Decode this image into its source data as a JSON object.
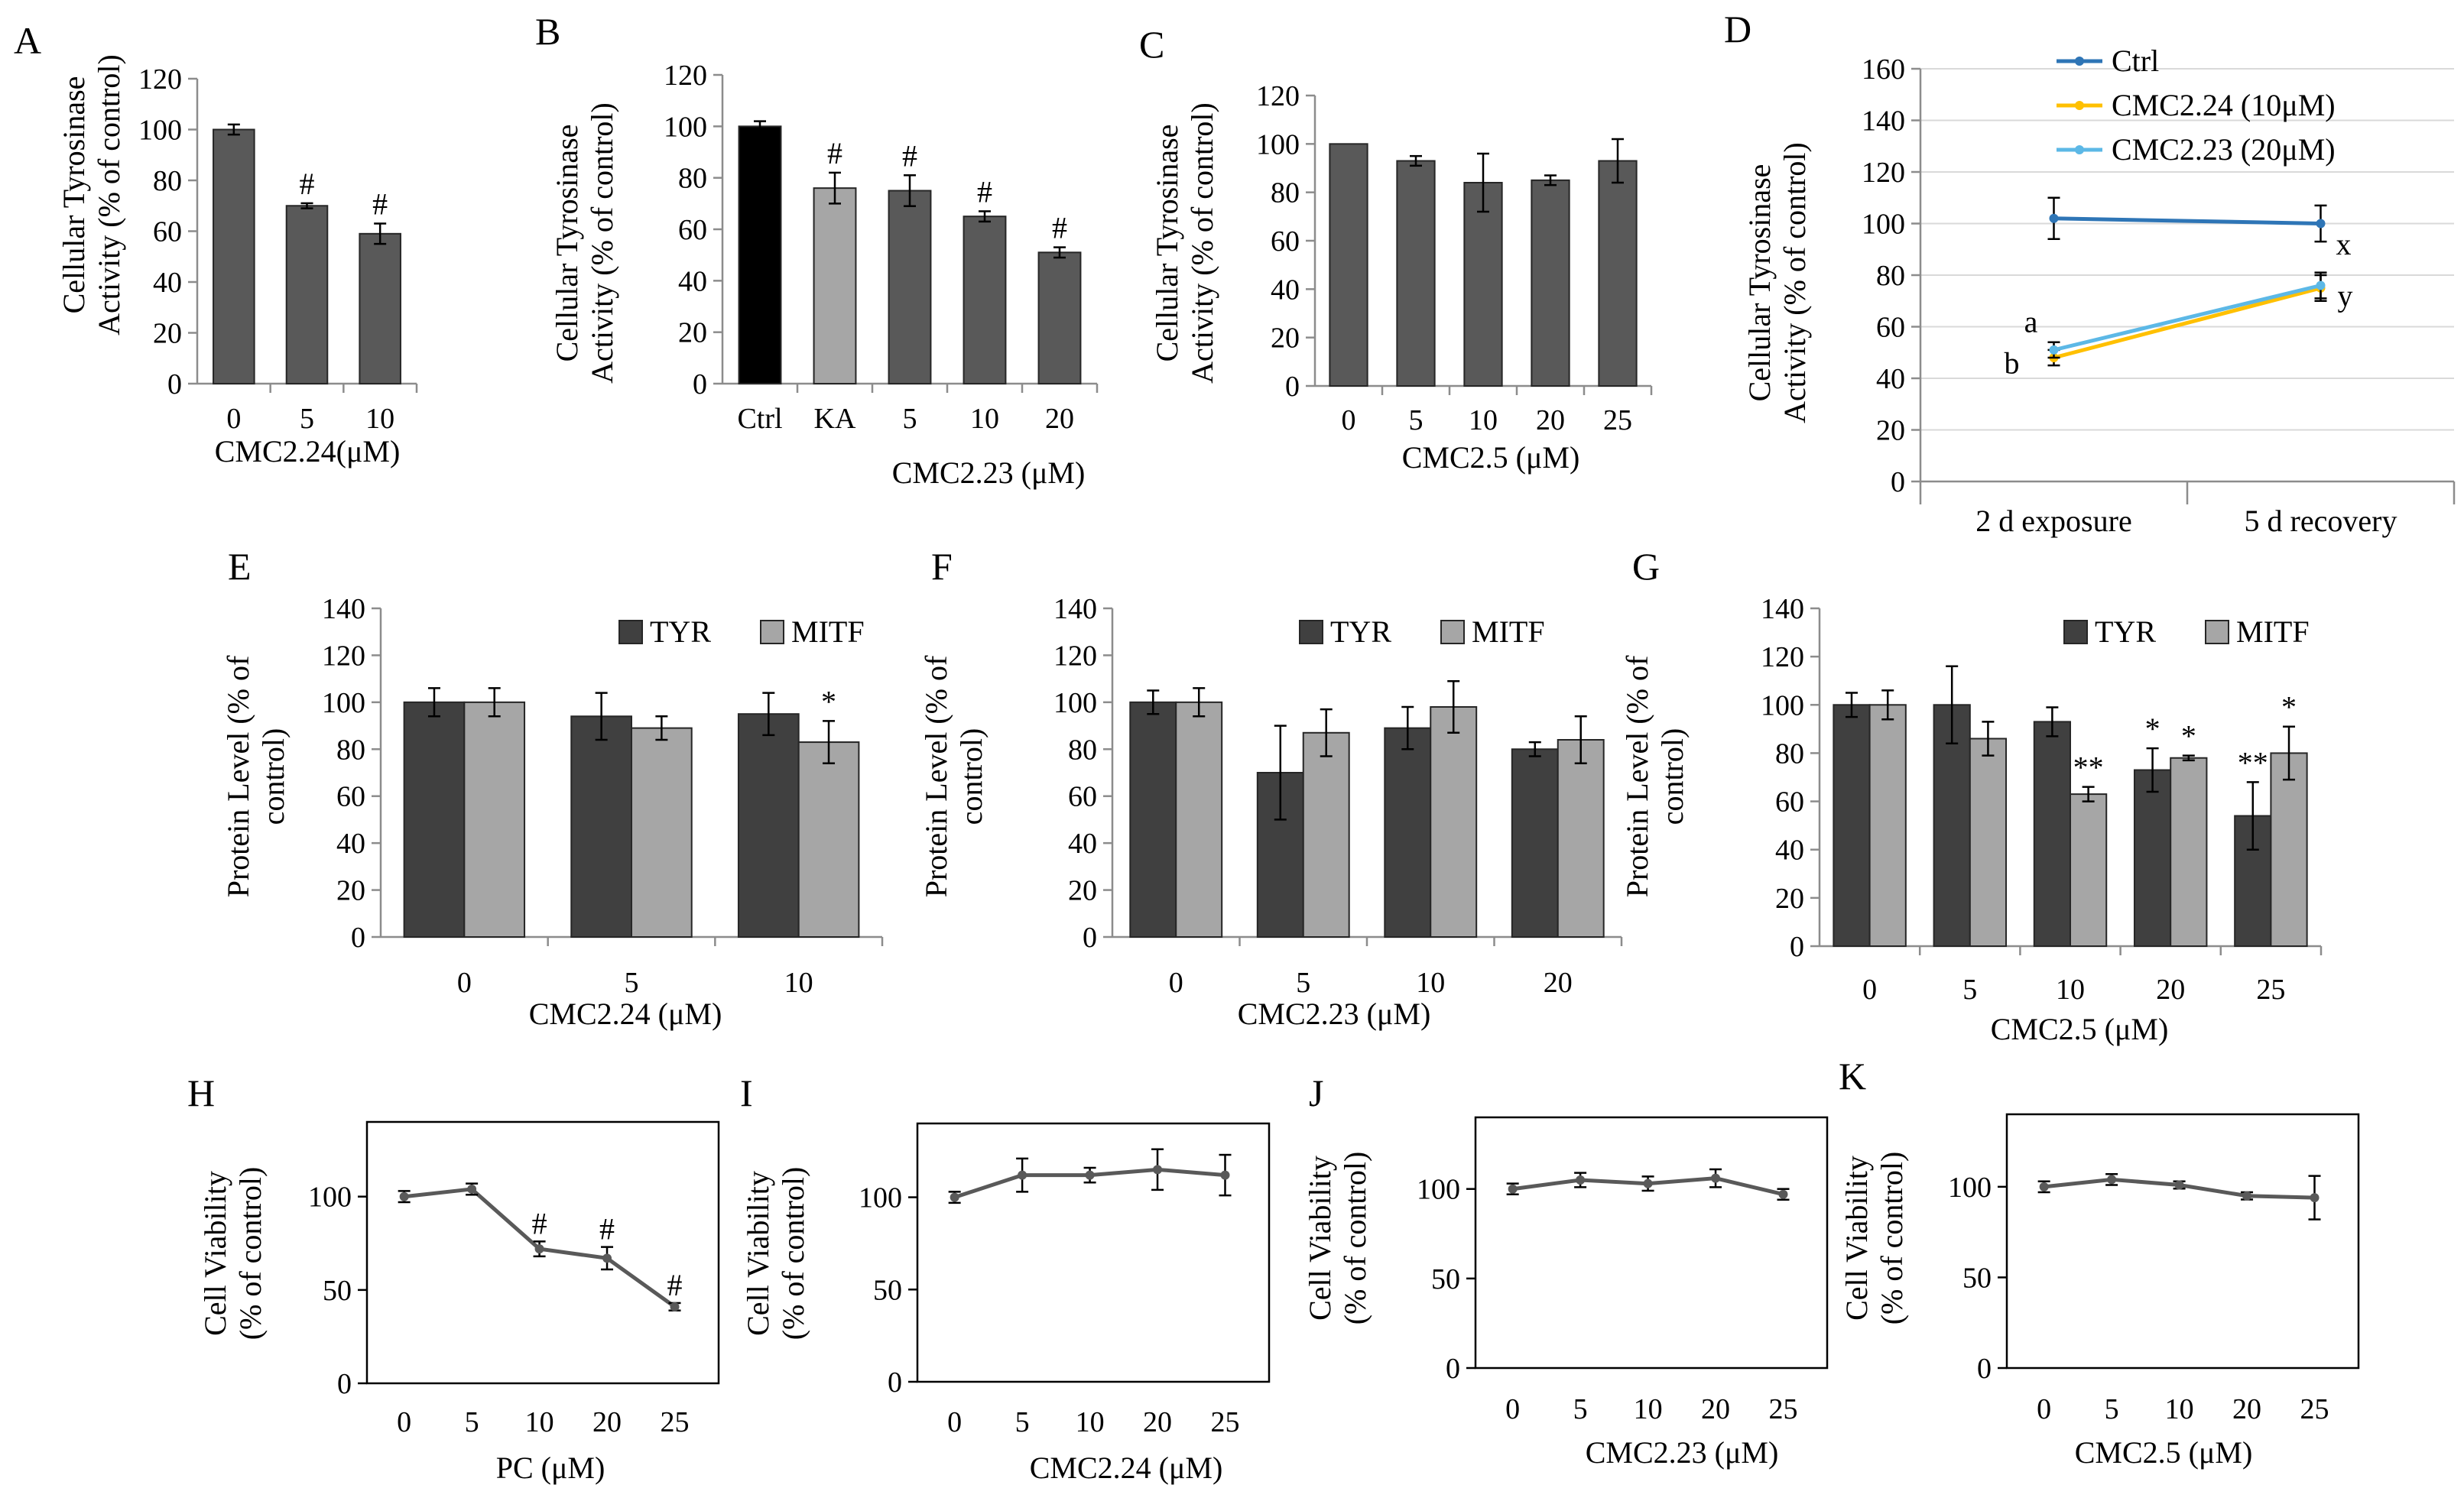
{
  "chart_data": [
    {
      "panel": "A",
      "type": "bar",
      "ylabel": [
        "Cellular Tyrosinase",
        "Activity (% of control)"
      ],
      "xlabel": "CMC2.24(μM)",
      "ylim": [
        0,
        120
      ],
      "yticks": [
        "0",
        "20",
        "40",
        "60",
        "80",
        "100",
        "120"
      ],
      "categories": [
        "0",
        "5",
        "10"
      ],
      "series": [
        {
          "name": "activity",
          "values": [
            100,
            70,
            59
          ],
          "errors": [
            2,
            1,
            4
          ],
          "color": "#595959"
        }
      ],
      "annotations": [
        "",
        "#",
        "#"
      ]
    },
    {
      "panel": "B",
      "type": "bar",
      "ylabel": [
        "Cellular Tyrosinase",
        "Activity (% of control)"
      ],
      "xlabel": "CMC2.23 (μM)",
      "ylim": [
        0,
        120
      ],
      "yticks": [
        "0",
        "20",
        "40",
        "60",
        "80",
        "100",
        "120"
      ],
      "categories": [
        "Ctrl",
        "KA",
        "5",
        "10",
        "20"
      ],
      "series": [
        {
          "name": "activity",
          "values": [
            100,
            76,
            75,
            65,
            51
          ],
          "errors": [
            2,
            6,
            6,
            2,
            2
          ],
          "colors": [
            "#000000",
            "#a6a6a6",
            "#595959",
            "#595959",
            "#595959"
          ]
        }
      ],
      "annotations": [
        "",
        "#",
        "#",
        "#",
        "#"
      ]
    },
    {
      "panel": "C",
      "type": "bar",
      "ylabel": [
        "Cellular Tyrosinase",
        "Activity (% of control)"
      ],
      "xlabel": "CMC2.5 (μM)",
      "ylim": [
        0,
        120
      ],
      "yticks": [
        "0",
        "20",
        "40",
        "60",
        "80",
        "100",
        "120"
      ],
      "categories": [
        "0",
        "5",
        "10",
        "20",
        "25"
      ],
      "series": [
        {
          "name": "activity",
          "values": [
            100,
            93,
            84,
            85,
            93
          ],
          "errors": [
            0,
            2,
            12,
            2,
            9
          ],
          "color": "#595959"
        }
      ],
      "annotations": [
        "",
        "",
        "",
        "",
        ""
      ]
    },
    {
      "panel": "D",
      "type": "line",
      "ylabel": [
        "Cellular Tyrosinase",
        "Activity (% of control)"
      ],
      "xlabel": "",
      "ylim": [
        0,
        160
      ],
      "yticks": [
        "0",
        "20",
        "40",
        "60",
        "80",
        "100",
        "120",
        "140",
        "160"
      ],
      "categories": [
        "2 d exposure",
        "5 d recovery"
      ],
      "grid": true,
      "legend_position": "top-center",
      "series": [
        {
          "name": "Ctrl",
          "values": [
            102,
            100
          ],
          "errors": [
            8,
            7
          ],
          "color": "#2e75b6"
        },
        {
          "name": "CMC2.24 (10μM)",
          "values": [
            48,
            75
          ],
          "errors": [
            3,
            5
          ],
          "color": "#ffc000"
        },
        {
          "name": "CMC2.23 (20μM)",
          "values": [
            51,
            76
          ],
          "errors": [
            3,
            5
          ],
          "color": "#5cb8e6"
        }
      ],
      "point_labels": [
        "a",
        "b",
        "x",
        "y"
      ]
    },
    {
      "panel": "E",
      "type": "bar",
      "ylabel": [
        "Protein Level (% of",
        "control)"
      ],
      "xlabel": "CMC2.24 (μM)",
      "ylim": [
        0,
        140
      ],
      "yticks": [
        "0",
        "20",
        "40",
        "60",
        "80",
        "100",
        "120",
        "140"
      ],
      "categories": [
        "0",
        "5",
        "10"
      ],
      "legend_position": "top-right",
      "series": [
        {
          "name": "TYR",
          "values": [
            100,
            94,
            95
          ],
          "errors": [
            6,
            10,
            9
          ],
          "color": "#404040"
        },
        {
          "name": "MITF",
          "values": [
            100,
            89,
            83
          ],
          "errors": [
            6,
            5,
            9
          ],
          "color": "#a6a6a6"
        }
      ],
      "annotations": [
        [
          "",
          ""
        ],
        [
          "",
          ""
        ],
        [
          "",
          "*"
        ]
      ]
    },
    {
      "panel": "F",
      "type": "bar",
      "ylabel": [
        "Protein Level (% of",
        "control)"
      ],
      "xlabel": "CMC2.23 (μM)",
      "ylim": [
        0,
        140
      ],
      "yticks": [
        "0",
        "20",
        "40",
        "60",
        "80",
        "100",
        "120",
        "140"
      ],
      "categories": [
        "0",
        "5",
        "10",
        "20"
      ],
      "legend_position": "top-right",
      "series": [
        {
          "name": "TYR",
          "values": [
            100,
            70,
            89,
            80
          ],
          "errors": [
            5,
            20,
            9,
            3
          ],
          "color": "#404040"
        },
        {
          "name": "MITF",
          "values": [
            100,
            87,
            98,
            84
          ],
          "errors": [
            6,
            10,
            11,
            10
          ],
          "color": "#a6a6a6"
        }
      ],
      "annotations": [
        [
          "",
          ""
        ],
        [
          "",
          ""
        ],
        [
          "",
          ""
        ],
        [
          "",
          ""
        ]
      ]
    },
    {
      "panel": "G",
      "type": "bar",
      "ylabel": [
        "Protein Level (% of",
        "control)"
      ],
      "xlabel": "CMC2.5 (μM)",
      "ylim": [
        0,
        140
      ],
      "yticks": [
        "0",
        "20",
        "40",
        "60",
        "80",
        "100",
        "120",
        "140"
      ],
      "categories": [
        "0",
        "5",
        "10",
        "20",
        "25"
      ],
      "legend_position": "top-right",
      "series": [
        {
          "name": "TYR",
          "values": [
            100,
            100,
            93,
            73,
            54
          ],
          "errors": [
            5,
            16,
            6,
            9,
            14
          ],
          "color": "#404040"
        },
        {
          "name": "MITF",
          "values": [
            100,
            86,
            63,
            78,
            80
          ],
          "errors": [
            6,
            7,
            3,
            1,
            11
          ],
          "color": "#a6a6a6"
        }
      ],
      "annotations": [
        [
          "",
          ""
        ],
        [
          "",
          ""
        ],
        [
          "",
          "**"
        ],
        [
          "*",
          "*"
        ],
        [
          "**",
          "*"
        ]
      ]
    },
    {
      "panel": "H",
      "type": "line",
      "ylabel": [
        "Cell Viability",
        "(% of control)"
      ],
      "xlabel": "PC (μM)",
      "ylim": [
        0,
        140
      ],
      "yticks": [
        "0",
        "50",
        "100"
      ],
      "categories": [
        "0",
        "5",
        "10",
        "20",
        "25"
      ],
      "series": [
        {
          "name": "viability",
          "values": [
            100,
            104,
            72,
            67,
            41
          ],
          "errors": [
            3,
            3,
            4,
            6,
            2
          ],
          "color": "#595959"
        }
      ],
      "annotations": [
        "",
        "",
        "#",
        "#",
        "#"
      ]
    },
    {
      "panel": "I",
      "type": "line",
      "ylabel": [
        "Cell Viability",
        "(% of control)"
      ],
      "xlabel": "CMC2.24 (μM)",
      "ylim": [
        0,
        140
      ],
      "yticks": [
        "0",
        "50",
        "100"
      ],
      "categories": [
        "0",
        "5",
        "10",
        "20",
        "25"
      ],
      "series": [
        {
          "name": "viability",
          "values": [
            100,
            112,
            112,
            115,
            112
          ],
          "errors": [
            3,
            9,
            4,
            11,
            11
          ],
          "color": "#595959"
        }
      ],
      "annotations": [
        "",
        "",
        "",
        "",
        ""
      ]
    },
    {
      "panel": "J",
      "type": "line",
      "ylabel": [
        "Cell Viability",
        "(% of control)"
      ],
      "xlabel": "CMC2.23 (μM)",
      "ylim": [
        0,
        140
      ],
      "yticks": [
        "0",
        "50",
        "100"
      ],
      "categories": [
        "0",
        "5",
        "10",
        "20",
        "25"
      ],
      "series": [
        {
          "name": "viability",
          "values": [
            100,
            105,
            103,
            106,
            97
          ],
          "errors": [
            3,
            4,
            4,
            5,
            3
          ],
          "color": "#595959"
        }
      ],
      "annotations": [
        "",
        "",
        "",
        "",
        ""
      ]
    },
    {
      "panel": "K",
      "type": "line",
      "ylabel": [
        "Cell Viability",
        "(% of control)"
      ],
      "xlabel": "CMC2.5 (μM)",
      "ylim": [
        0,
        140
      ],
      "yticks": [
        "0",
        "50",
        "100"
      ],
      "categories": [
        "0",
        "5",
        "10",
        "20",
        "25"
      ],
      "series": [
        {
          "name": "viability",
          "values": [
            100,
            104,
            101,
            95,
            94
          ],
          "errors": [
            3,
            3,
            2,
            2,
            12
          ],
          "color": "#595959"
        }
      ],
      "annotations": [
        "",
        "",
        "",
        "",
        ""
      ]
    }
  ]
}
